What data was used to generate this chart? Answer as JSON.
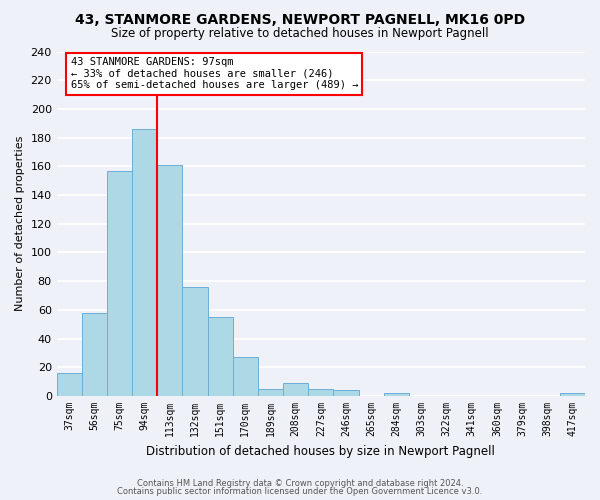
{
  "title": "43, STANMORE GARDENS, NEWPORT PAGNELL, MK16 0PD",
  "subtitle": "Size of property relative to detached houses in Newport Pagnell",
  "xlabel": "Distribution of detached houses by size in Newport Pagnell",
  "ylabel": "Number of detached properties",
  "bin_labels": [
    "37sqm",
    "56sqm",
    "75sqm",
    "94sqm",
    "113sqm",
    "132sqm",
    "151sqm",
    "170sqm",
    "189sqm",
    "208sqm",
    "227sqm",
    "246sqm",
    "265sqm",
    "284sqm",
    "303sqm",
    "322sqm",
    "341sqm",
    "360sqm",
    "379sqm",
    "398sqm",
    "417sqm"
  ],
  "bar_values": [
    16,
    58,
    157,
    186,
    161,
    76,
    55,
    27,
    5,
    9,
    5,
    4,
    0,
    2,
    0,
    0,
    0,
    0,
    0,
    0,
    2
  ],
  "bar_color": "#add8e6",
  "bar_edge_color": "#6aaed6",
  "vline_color": "red",
  "annotation_title": "43 STANMORE GARDENS: 97sqm",
  "annotation_line1": "← 33% of detached houses are smaller (246)",
  "annotation_line2": "65% of semi-detached houses are larger (489) →",
  "annotation_box_edgecolor": "red",
  "ylim": [
    0,
    240
  ],
  "yticks": [
    0,
    20,
    40,
    60,
    80,
    100,
    120,
    140,
    160,
    180,
    200,
    220,
    240
  ],
  "footer1": "Contains HM Land Registry data © Crown copyright and database right 2024.",
  "footer2": "Contains public sector information licensed under the Open Government Licence v3.0.",
  "bg_color": "#eef2f8"
}
